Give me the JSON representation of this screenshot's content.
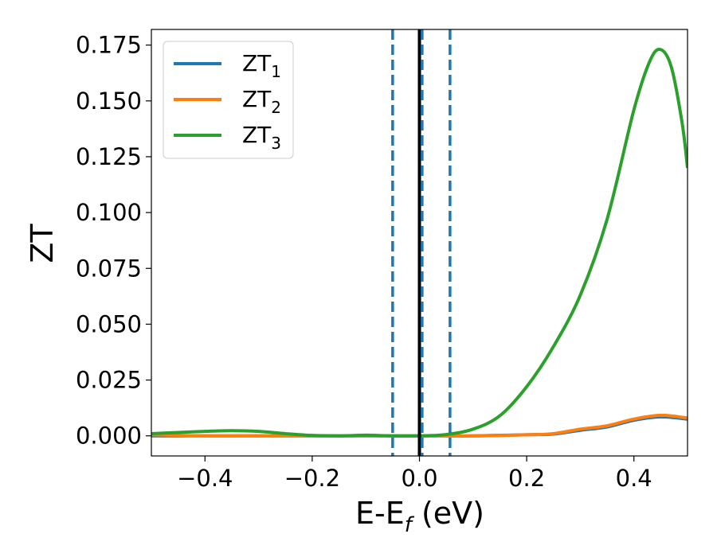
{
  "chart_data": {
    "type": "line",
    "xlabel_main": "E-E",
    "xlabel_sub": "f",
    "xlabel_unit": " (eV)",
    "ylabel": "ZT",
    "xlim": [
      -0.5,
      0.5
    ],
    "ylim": [
      -0.009,
      0.182
    ],
    "x_ticks": [
      -0.4,
      -0.2,
      0.0,
      0.2,
      0.4
    ],
    "x_tick_labels": [
      "−0.4",
      "−0.2",
      "0.0",
      "0.2",
      "0.4"
    ],
    "y_ticks": [
      0.0,
      0.025,
      0.05,
      0.075,
      0.1,
      0.125,
      0.15,
      0.175
    ],
    "y_tick_labels": [
      "0.000",
      "0.025",
      "0.050",
      "0.075",
      "0.100",
      "0.125",
      "0.150",
      "0.175"
    ],
    "grid": false,
    "legend_position": "top-left",
    "series": [
      {
        "name_main": "ZT",
        "name_sub": "1",
        "color": "#1f77b4",
        "x": [
          -0.5,
          -0.4,
          -0.3,
          -0.2,
          -0.1,
          0.0,
          0.1,
          0.2,
          0.25,
          0.3,
          0.35,
          0.4,
          0.45,
          0.5
        ],
        "y": [
          0.0,
          0.0,
          0.0,
          0.0,
          0.0,
          0.0,
          0.0,
          0.0005,
          0.0008,
          0.0025,
          0.004,
          0.007,
          0.0085,
          0.0075
        ]
      },
      {
        "name_main": "ZT",
        "name_sub": "2",
        "color": "#ff7f0e",
        "x": [
          -0.5,
          -0.4,
          -0.3,
          -0.2,
          -0.1,
          0.0,
          0.1,
          0.2,
          0.25,
          0.3,
          0.35,
          0.4,
          0.45,
          0.5
        ],
        "y": [
          0.0005,
          0.0,
          0.0,
          0.0,
          0.0,
          0.0,
          0.0,
          0.0005,
          0.001,
          0.003,
          0.0045,
          0.0075,
          0.0092,
          0.008
        ]
      },
      {
        "name_main": "ZT",
        "name_sub": "3",
        "color": "#2ca02c",
        "x": [
          -0.5,
          -0.45,
          -0.4,
          -0.35,
          -0.3,
          -0.25,
          -0.2,
          -0.15,
          -0.1,
          -0.05,
          0.0,
          0.05,
          0.1,
          0.15,
          0.2,
          0.25,
          0.3,
          0.35,
          0.4,
          0.43,
          0.45,
          0.47,
          0.49,
          0.5
        ],
        "y": [
          0.001,
          0.0015,
          0.002,
          0.0023,
          0.002,
          0.001,
          0.0002,
          0.0,
          0.0003,
          0.0,
          0.0,
          0.0006,
          0.003,
          0.009,
          0.022,
          0.04,
          0.063,
          0.097,
          0.146,
          0.168,
          0.173,
          0.165,
          0.14,
          0.12
        ]
      }
    ],
    "vertical_lines": [
      {
        "x": 0.0,
        "style": "solid",
        "color": "#000000"
      },
      {
        "x": -0.05,
        "style": "dashed",
        "color": "#1f77b4"
      },
      {
        "x": 0.005,
        "style": "dashed",
        "color": "#1f77b4"
      },
      {
        "x": 0.057,
        "style": "dashed",
        "color": "#1f77b4"
      }
    ]
  }
}
